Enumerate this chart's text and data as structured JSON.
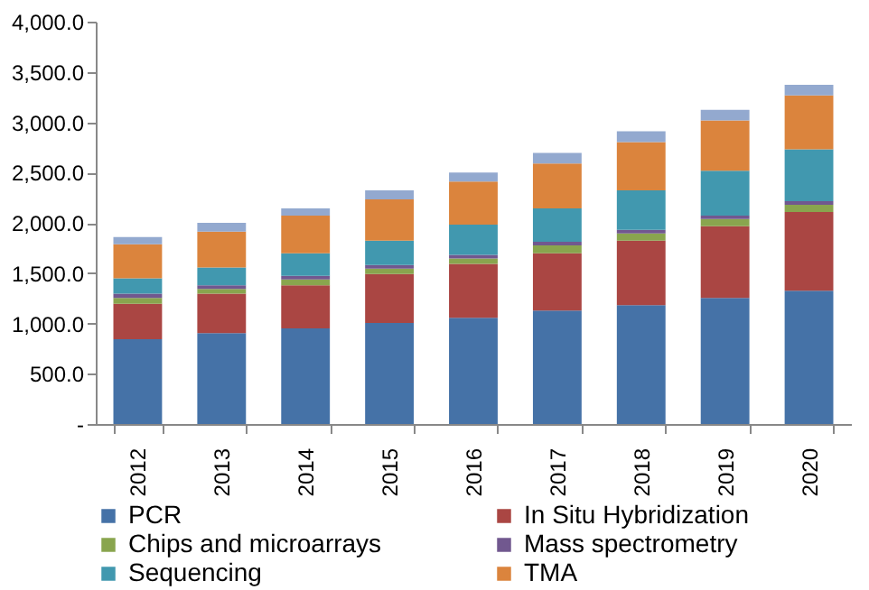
{
  "chart_data": {
    "type": "bar",
    "stacked": true,
    "categories": [
      "2012",
      "2013",
      "2014",
      "2015",
      "2016",
      "2017",
      "2018",
      "2019",
      "2020"
    ],
    "series": [
      {
        "name": "PCR",
        "color": "#4572a7",
        "values": [
          843,
          903,
          950,
          1004,
          1057,
          1128,
          1182,
          1253,
          1324
        ]
      },
      {
        "name": "In Situ Hybridization",
        "color": "#aa4643",
        "values": [
          351,
          392,
          428,
          486,
          534,
          570,
          641,
          713,
          784
        ]
      },
      {
        "name": "Chips and microarrays",
        "color": "#89a54e",
        "values": [
          59,
          47,
          59,
          54,
          54,
          78,
          71,
          71,
          71
        ]
      },
      {
        "name": "Mass spectrometry",
        "color": "#71588f",
        "values": [
          42,
          36,
          36,
          36,
          36,
          35,
          36,
          35,
          36
        ]
      },
      {
        "name": "Sequencing",
        "color": "#4198af",
        "values": [
          154,
          178,
          225,
          243,
          302,
          333,
          392,
          446,
          517
        ]
      },
      {
        "name": "TMA",
        "color": "#db843d",
        "values": [
          338,
          356,
          374,
          410,
          428,
          445,
          481,
          499,
          534
        ]
      },
      {
        "color": "#93a9cf",
        "values": [
          72,
          89,
          72,
          89,
          89,
          107,
          107,
          107,
          107
        ]
      }
    ],
    "ylim": [
      0,
      4000
    ],
    "yticks": [
      {
        "value": 0,
        "label": "-"
      },
      {
        "value": 500,
        "label": "500.0"
      },
      {
        "value": 1000,
        "label": "1,000.0"
      },
      {
        "value": 1500,
        "label": "1,500.0"
      },
      {
        "value": 2000,
        "label": "2,000.0"
      },
      {
        "value": 2500,
        "label": "2,500.0"
      },
      {
        "value": 3000,
        "label": "3,000.0"
      },
      {
        "value": 3500,
        "label": "3,500.0"
      },
      {
        "value": 4000,
        "label": "4,000.0"
      }
    ],
    "grid": false,
    "legend": "bottom"
  }
}
